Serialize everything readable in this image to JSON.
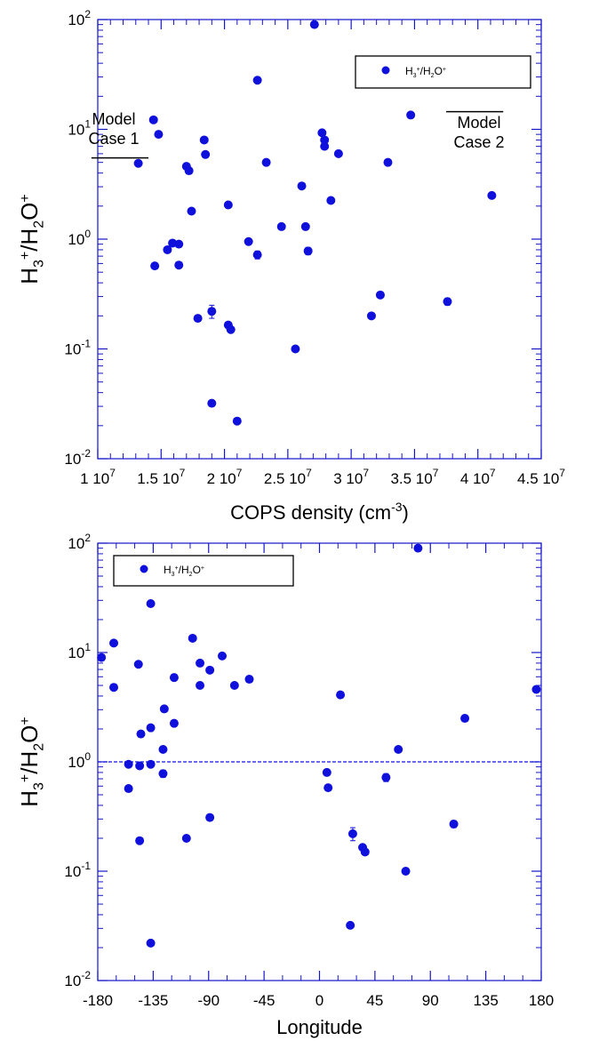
{
  "colors": {
    "axis": "#1515c8",
    "marker": "#1010dd",
    "text": "#000000",
    "background": "#ffffff"
  },
  "chart_data": [
    {
      "type": "scatter",
      "scale": {
        "x": "linear",
        "y": "log"
      },
      "xlabel_main": "COPS density (cm",
      "xlabel_sup": "-3",
      "xlabel_end": ")",
      "ylabel": {
        "H": "H",
        "s1": "3",
        "p1": "+",
        "mid": "/H",
        "s2": "2",
        "O": "O",
        "p2": "+"
      },
      "xlim": [
        10000000,
        45000000
      ],
      "ylim": [
        0.01,
        100
      ],
      "x_ticks": [
        {
          "value": 10000000,
          "mant": "1",
          "exp": "7"
        },
        {
          "value": 15000000,
          "mant": "1.5",
          "exp": "7"
        },
        {
          "value": 20000000,
          "mant": "2",
          "exp": "7"
        },
        {
          "value": 25000000,
          "mant": "2.5",
          "exp": "7"
        },
        {
          "value": 30000000,
          "mant": "3",
          "exp": "7"
        },
        {
          "value": 35000000,
          "mant": "3.5",
          "exp": "7"
        },
        {
          "value": 40000000,
          "mant": "4",
          "exp": "7"
        },
        {
          "value": 45000000,
          "mant": "4.5",
          "exp": "7"
        }
      ],
      "y_ticks": [
        {
          "value": 100,
          "base": "10",
          "exp": "2"
        },
        {
          "value": 10,
          "base": "10",
          "exp": "1"
        },
        {
          "value": 1,
          "base": "10",
          "exp": "0"
        },
        {
          "value": 0.1,
          "base": "10",
          "exp": "-1"
        },
        {
          "value": 0.01,
          "base": "10",
          "exp": "-2"
        }
      ],
      "legend": {
        "position": "top-right",
        "label": {
          "H": "H",
          "s1": "3",
          "p1": "+",
          "mid": "/H",
          "s2": "2",
          "O": "O",
          "p2": "+"
        }
      },
      "annotations": [
        {
          "line1": "Model",
          "line2": "Case 1",
          "value": 5.5,
          "x_range": [
            9500000,
            14000000
          ]
        },
        {
          "line1": "Model",
          "line2": "Case 2",
          "value": 14.5,
          "x_range": [
            37500000,
            42000000
          ]
        }
      ],
      "series": [
        {
          "points": [
            {
              "x": 13200000,
              "y": 4.9
            },
            {
              "x": 14400000,
              "y": 12.2
            },
            {
              "x": 14500000,
              "y": 0.57
            },
            {
              "x": 14800000,
              "y": 9.0
            },
            {
              "x": 15500000,
              "y": 0.8
            },
            {
              "x": 15900000,
              "y": 0.92
            },
            {
              "x": 16400000,
              "y": 0.9
            },
            {
              "x": 16400000,
              "y": 0.58
            },
            {
              "x": 17000000,
              "y": 4.6
            },
            {
              "x": 17200000,
              "y": 4.2
            },
            {
              "x": 17400000,
              "y": 1.8
            },
            {
              "x": 17900000,
              "y": 0.19
            },
            {
              "x": 18400000,
              "y": 8.0
            },
            {
              "x": 18500000,
              "y": 5.9
            },
            {
              "x": 19000000,
              "y": 0.22,
              "err": 0.03
            },
            {
              "x": 19000000,
              "y": 0.032
            },
            {
              "x": 20300000,
              "y": 2.05
            },
            {
              "x": 20300000,
              "y": 0.165
            },
            {
              "x": 20500000,
              "y": 0.15
            },
            {
              "x": 21000000,
              "y": 0.022
            },
            {
              "x": 21900000,
              "y": 0.95
            },
            {
              "x": 22600000,
              "y": 28.0
            },
            {
              "x": 22600000,
              "y": 0.72,
              "err": 0.06
            },
            {
              "x": 23300000,
              "y": 5.0
            },
            {
              "x": 24500000,
              "y": 1.3
            },
            {
              "x": 25600000,
              "y": 0.1
            },
            {
              "x": 26100000,
              "y": 3.05
            },
            {
              "x": 26400000,
              "y": 1.3
            },
            {
              "x": 26600000,
              "y": 0.78,
              "err": 0.06
            },
            {
              "x": 27100000,
              "y": 90.0
            },
            {
              "x": 27700000,
              "y": 9.3
            },
            {
              "x": 27900000,
              "y": 8.0
            },
            {
              "x": 27900000,
              "y": 7.0
            },
            {
              "x": 28400000,
              "y": 2.25
            },
            {
              "x": 29000000,
              "y": 6.0
            },
            {
              "x": 31600000,
              "y": 0.2
            },
            {
              "x": 32300000,
              "y": 0.31
            },
            {
              "x": 32900000,
              "y": 5.0
            },
            {
              "x": 34700000,
              "y": 13.5
            },
            {
              "x": 37600000,
              "y": 0.27,
              "err": 0.02
            },
            {
              "x": 41100000,
              "y": 2.5
            }
          ]
        }
      ]
    },
    {
      "type": "scatter",
      "scale": {
        "x": "linear",
        "y": "log"
      },
      "xlabel": "Longitude",
      "ylabel": {
        "H": "H",
        "s1": "3",
        "p1": "+",
        "mid": "/H",
        "s2": "2",
        "O": "O",
        "p2": "+"
      },
      "xlim": [
        -180,
        180
      ],
      "ylim": [
        0.01,
        100
      ],
      "x_ticks": [
        {
          "value": -180,
          "label": "-180"
        },
        {
          "value": -135,
          "label": "-135"
        },
        {
          "value": -90,
          "label": "-90"
        },
        {
          "value": -45,
          "label": "-45"
        },
        {
          "value": 0,
          "label": "0"
        },
        {
          "value": 45,
          "label": "45"
        },
        {
          "value": 90,
          "label": "90"
        },
        {
          "value": 135,
          "label": "135"
        },
        {
          "value": 180,
          "label": "180"
        }
      ],
      "y_ticks": [
        {
          "value": 100,
          "base": "10",
          "exp": "2"
        },
        {
          "value": 10,
          "base": "10",
          "exp": "1"
        },
        {
          "value": 1,
          "base": "10",
          "exp": "0"
        },
        {
          "value": 0.1,
          "base": "10",
          "exp": "-1"
        },
        {
          "value": 0.01,
          "base": "10",
          "exp": "-2"
        }
      ],
      "legend": {
        "position": "top-left",
        "label": {
          "H": "H",
          "s1": "3",
          "p1": "+",
          "mid": "/H",
          "s2": "2",
          "O": "O",
          "p2": "+"
        }
      },
      "reference_line": {
        "y": 1.0,
        "style": "dashed"
      },
      "series": [
        {
          "points": [
            {
              "x": -177,
              "y": 9.0
            },
            {
              "x": -167,
              "y": 12.2
            },
            {
              "x": -167,
              "y": 4.8
            },
            {
              "x": -155,
              "y": 0.95
            },
            {
              "x": -155,
              "y": 0.57
            },
            {
              "x": -147,
              "y": 7.8
            },
            {
              "x": -146,
              "y": 0.92
            },
            {
              "x": -145,
              "y": 1.8
            },
            {
              "x": -146,
              "y": 0.19
            },
            {
              "x": -137,
              "y": 28.0
            },
            {
              "x": -137,
              "y": 2.05
            },
            {
              "x": -137,
              "y": 0.95
            },
            {
              "x": -137,
              "y": 0.022
            },
            {
              "x": -126,
              "y": 3.05
            },
            {
              "x": -127,
              "y": 1.3
            },
            {
              "x": -127,
              "y": 0.78,
              "err": 0.06
            },
            {
              "x": -118,
              "y": 5.9
            },
            {
              "x": -118,
              "y": 2.25
            },
            {
              "x": -108,
              "y": 0.2
            },
            {
              "x": -103,
              "y": 13.5
            },
            {
              "x": -97,
              "y": 8.0
            },
            {
              "x": -97,
              "y": 5.0
            },
            {
              "x": -89,
              "y": 6.9
            },
            {
              "x": -89,
              "y": 0.31
            },
            {
              "x": -79,
              "y": 9.3
            },
            {
              "x": -69,
              "y": 5.0
            },
            {
              "x": -57,
              "y": 5.7
            },
            {
              "x": 6,
              "y": 0.8
            },
            {
              "x": 7,
              "y": 0.58
            },
            {
              "x": 17,
              "y": 4.1
            },
            {
              "x": 25,
              "y": 0.032
            },
            {
              "x": 27,
              "y": 0.22,
              "err": 0.03
            },
            {
              "x": 35,
              "y": 0.165
            },
            {
              "x": 37,
              "y": 0.15
            },
            {
              "x": 54,
              "y": 0.72,
              "err": 0.06
            },
            {
              "x": 64,
              "y": 1.3
            },
            {
              "x": 70,
              "y": 0.1
            },
            {
              "x": 80,
              "y": 90.0
            },
            {
              "x": 109,
              "y": 0.27,
              "err": 0.02
            },
            {
              "x": 118,
              "y": 2.5
            },
            {
              "x": 176,
              "y": 4.6
            }
          ]
        }
      ]
    }
  ]
}
